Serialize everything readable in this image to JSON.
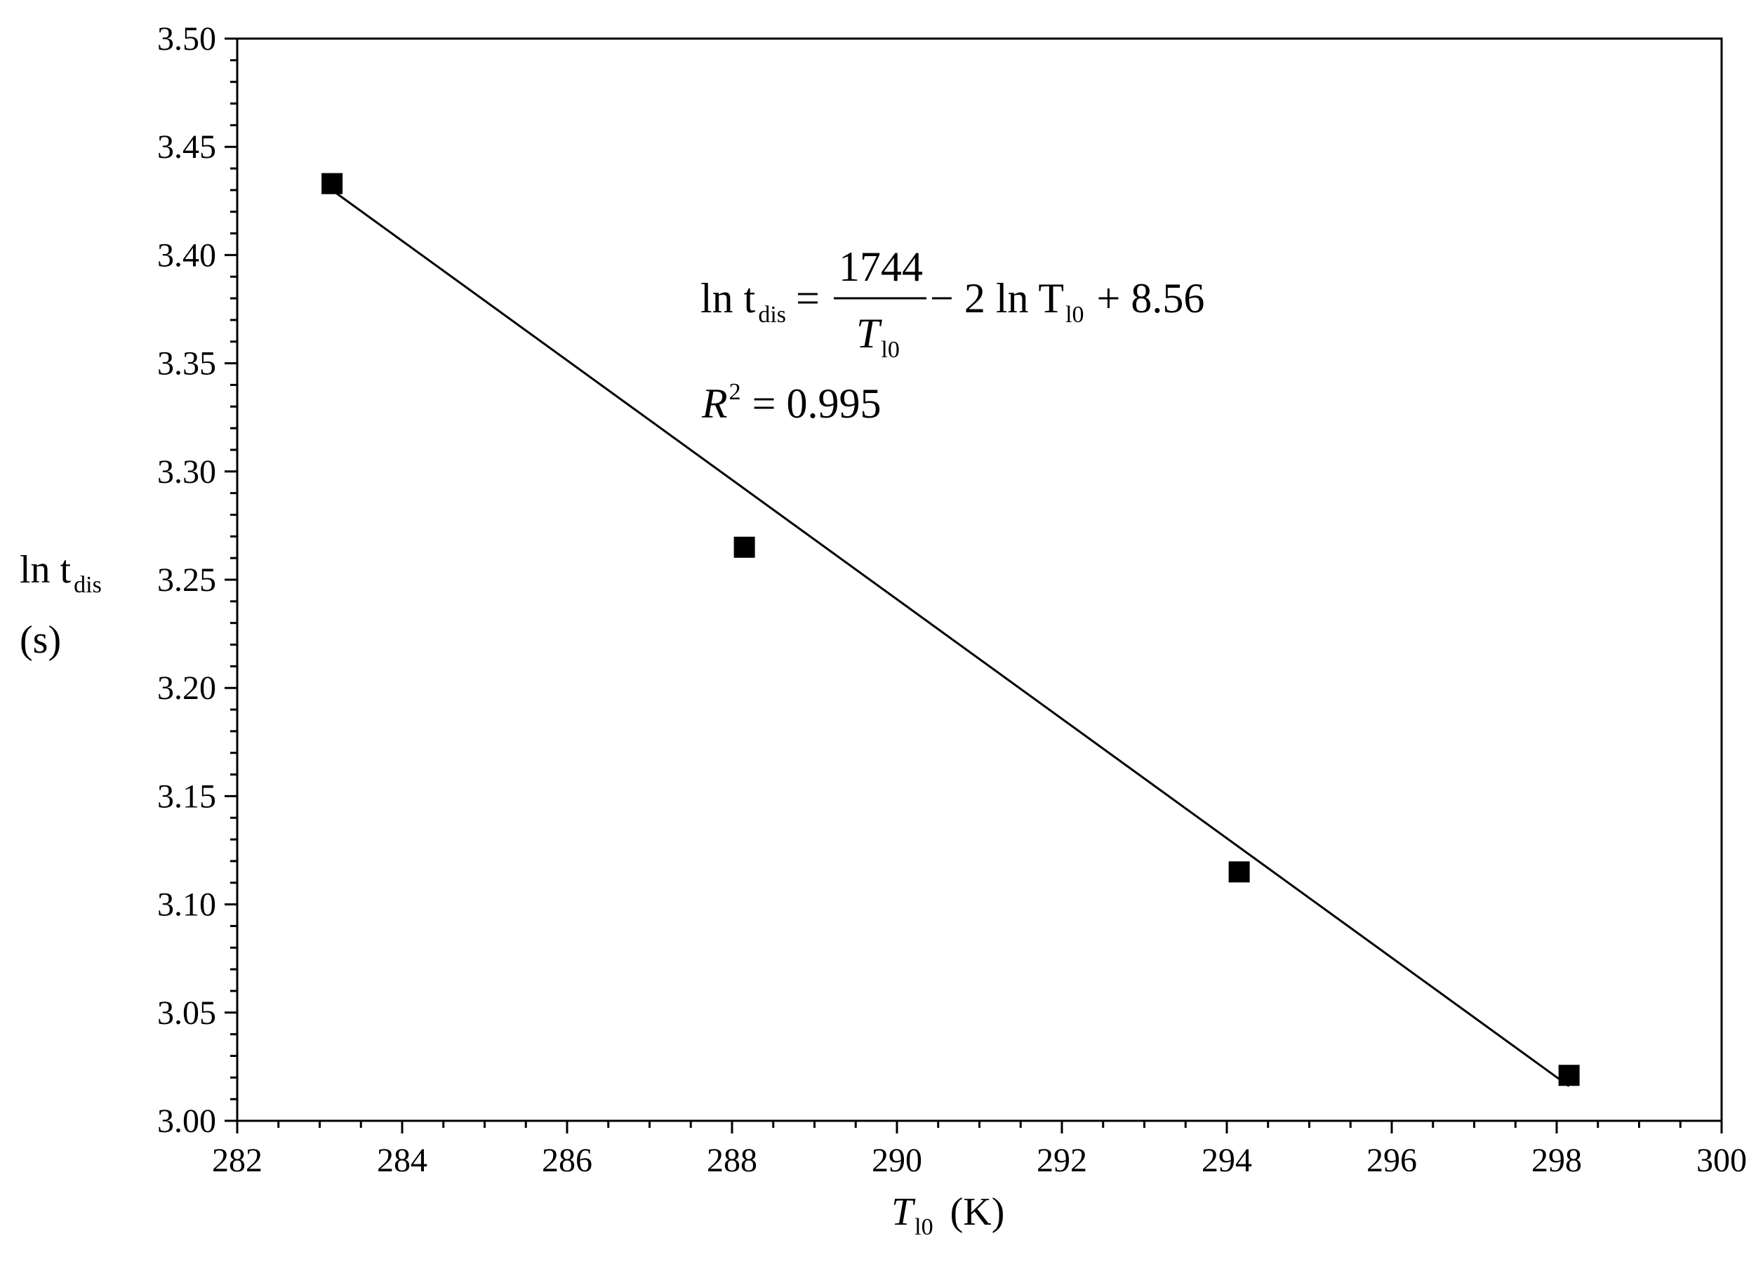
{
  "chart_data": {
    "type": "scatter",
    "x": [
      283.15,
      288.15,
      294.15,
      298.15
    ],
    "y": [
      3.433,
      3.265,
      3.115,
      3.021
    ],
    "fit_line": {
      "x": [
        283.15,
        298.15
      ],
      "y": [
        3.43,
        3.016
      ]
    },
    "xlim": [
      282,
      300
    ],
    "ylim": [
      3.0,
      3.5
    ],
    "x_ticks": [
      "282",
      "284",
      "286",
      "288",
      "290",
      "292",
      "294",
      "296",
      "298",
      "300"
    ],
    "y_ticks": [
      "3.00",
      "3.05",
      "3.10",
      "3.15",
      "3.20",
      "3.25",
      "3.30",
      "3.35",
      "3.40",
      "3.45",
      "3.50"
    ],
    "xlabel": {
      "main": "T",
      "sub": "l0",
      "unit": "(K)"
    },
    "ylabel": {
      "main": "ln t",
      "sub": "dis",
      "unit": "(s)"
    },
    "equation": {
      "lhs": "ln t",
      "lhs_sub": "dis",
      "numerator": "1744",
      "denominator": "T",
      "denominator_sub": "l0",
      "rest_a": "− 2 ln T",
      "rest_sub": "l0",
      "rest_b": "+ 8.56"
    },
    "r2": {
      "r": "R",
      "exp": "2",
      "value": "= 0.995"
    },
    "marker_color": "#000000",
    "line_color": "#000000",
    "grid": false
  }
}
